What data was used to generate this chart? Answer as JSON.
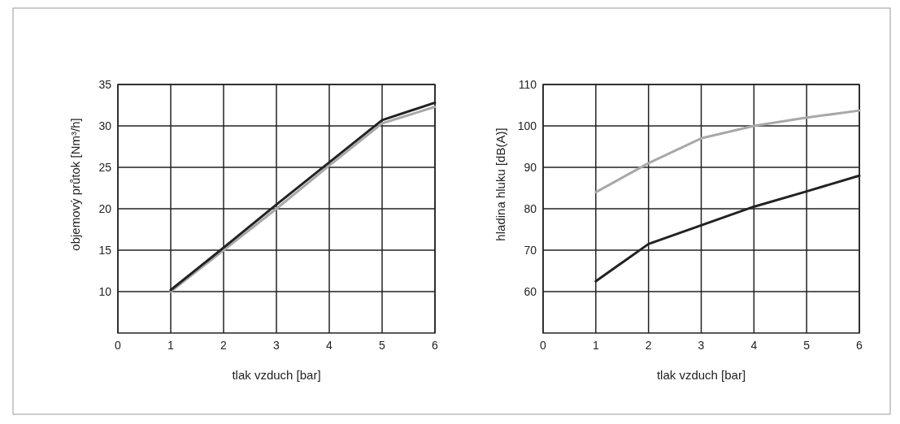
{
  "chart_data": [
    {
      "type": "line",
      "xlabel": "tlak vzduch [bar]",
      "ylabel": "objemový průtok [Nm³/h]",
      "x": [
        1,
        2,
        3,
        4,
        5,
        6
      ],
      "series": [
        {
          "color": "#a8a8a8",
          "values": [
            10,
            15,
            20,
            25.2,
            30.3,
            32.3
          ]
        },
        {
          "color": "#222222",
          "values": [
            10.2,
            15.3,
            20.5,
            25.6,
            30.7,
            32.8
          ]
        }
      ],
      "xlim": [
        0,
        6
      ],
      "xticks": [
        0,
        1,
        2,
        3,
        4,
        5,
        6
      ],
      "ylim": [
        5,
        35
      ],
      "yticks": [
        10,
        15,
        20,
        25,
        30,
        35
      ],
      "grid": true,
      "marker": "none",
      "line_style": "solid"
    },
    {
      "type": "line",
      "xlabel": "tlak vzduch [bar]",
      "ylabel": "hladina hluku [dB(A)]",
      "x": [
        1,
        2,
        3,
        4,
        5,
        6
      ],
      "series": [
        {
          "color": "#a8a8a8",
          "values": [
            84,
            91,
            97,
            100,
            102,
            103.7
          ]
        },
        {
          "color": "#222222",
          "values": [
            62.5,
            71.5,
            76,
            80.5,
            84.2,
            88
          ]
        }
      ],
      "xlim": [
        0,
        6
      ],
      "xticks": [
        0,
        1,
        2,
        3,
        4,
        5,
        6
      ],
      "ylim": [
        50,
        110
      ],
      "yticks": [
        60,
        70,
        80,
        90,
        100,
        110
      ],
      "grid": true,
      "marker": "none",
      "line_style": "solid"
    }
  ]
}
